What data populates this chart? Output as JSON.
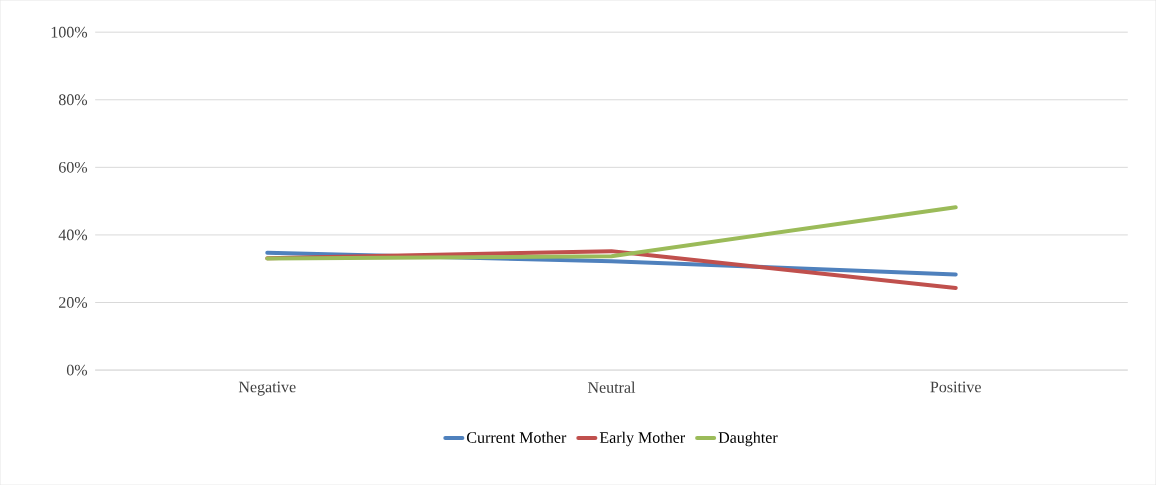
{
  "chart_data": {
    "type": "line",
    "categories": [
      "Negative",
      "Neutral",
      "Positive"
    ],
    "series": [
      {
        "name": "Current Mother",
        "color": "#4f81bd",
        "values": [
          34.7,
          32.2,
          28.3
        ]
      },
      {
        "name": "Early Mother",
        "color": "#c0504d",
        "values": [
          33.1,
          35.2,
          24.3
        ]
      },
      {
        "name": "Daughter",
        "color": "#9bbb59",
        "values": [
          33,
          33.7,
          48.2
        ]
      }
    ],
    "ylim": [
      0,
      100
    ],
    "yticks": [
      {
        "value": 0,
        "label": "0%"
      },
      {
        "value": 20,
        "label": "20%"
      },
      {
        "value": 40,
        "label": "40%"
      },
      {
        "value": 60,
        "label": "60%"
      },
      {
        "value": 80,
        "label": "80%"
      },
      {
        "value": 100,
        "label": "100%"
      }
    ],
    "grid": "y",
    "legend": "bottom",
    "marker": "none",
    "line_style": "solid"
  }
}
